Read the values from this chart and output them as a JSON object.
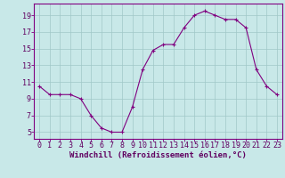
{
  "x": [
    0,
    1,
    2,
    3,
    4,
    5,
    6,
    7,
    8,
    9,
    10,
    11,
    12,
    13,
    14,
    15,
    16,
    17,
    18,
    19,
    20,
    21,
    22,
    23
  ],
  "y": [
    10.5,
    9.5,
    9.5,
    9.5,
    9.0,
    7.0,
    5.5,
    5.0,
    5.0,
    8.0,
    12.5,
    14.8,
    15.5,
    15.5,
    17.5,
    19.0,
    19.5,
    19.0,
    18.5,
    18.5,
    17.5,
    12.5,
    10.5,
    9.5
  ],
  "line_color": "#800080",
  "marker_color": "#800080",
  "bg_color": "#c8e8e8",
  "grid_color": "#a0c8c8",
  "xlabel": "Windchill (Refroidissement éolien,°C)",
  "yticks": [
    5,
    7,
    9,
    11,
    13,
    15,
    17,
    19
  ],
  "xticks": [
    0,
    1,
    2,
    3,
    4,
    5,
    6,
    7,
    8,
    9,
    10,
    11,
    12,
    13,
    14,
    15,
    16,
    17,
    18,
    19,
    20,
    21,
    22,
    23
  ],
  "ylim": [
    4.2,
    20.4
  ],
  "xlim": [
    -0.5,
    23.5
  ],
  "xlabel_fontsize": 6.5,
  "tick_fontsize": 6.0,
  "marker_size": 2.5,
  "linewidth": 0.8
}
